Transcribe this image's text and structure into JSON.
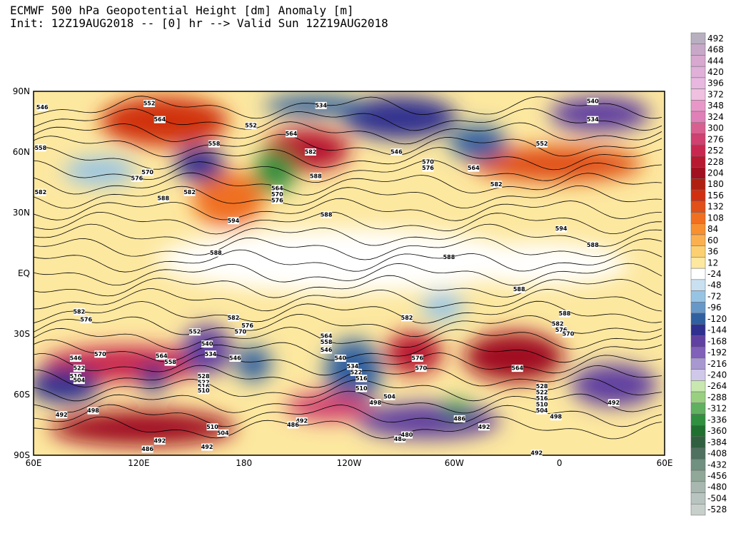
{
  "header": {
    "title": "ECMWF 500 hPa Geopotential Height [dm] Anomaly [m]",
    "subtitle": "Init: 12Z19AUG2018 -- [0] hr --> Valid Sun 12Z19AUG2018"
  },
  "map": {
    "lon_labels": [
      "60E",
      "120E",
      "180",
      "120W",
      "60W",
      "0",
      "60E"
    ],
    "lat_labels": [
      "90N",
      "60N",
      "30N",
      "EQ",
      "30S",
      "60S",
      "90S"
    ],
    "contour_labels": [
      {
        "text": "552",
        "lon": 126,
        "lat": 84
      },
      {
        "text": "546",
        "lon": 65,
        "lat": 82
      },
      {
        "text": "564",
        "lon": 132,
        "lat": 76
      },
      {
        "text": "558",
        "lon": 64,
        "lat": 62
      },
      {
        "text": "552",
        "lon": -176,
        "lat": 73
      },
      {
        "text": "558",
        "lon": 163,
        "lat": 64
      },
      {
        "text": "564",
        "lon": -153,
        "lat": 69
      },
      {
        "text": "570",
        "lon": 125,
        "lat": 50
      },
      {
        "text": "576",
        "lon": 119,
        "lat": 47
      },
      {
        "text": "582",
        "lon": 149,
        "lat": 40
      },
      {
        "text": "588",
        "lon": 134,
        "lat": 37
      },
      {
        "text": "582",
        "lon": 64,
        "lat": 40
      },
      {
        "text": "594",
        "lon": 174,
        "lat": 26
      },
      {
        "text": "588",
        "lon": 164,
        "lat": 10
      },
      {
        "text": "588",
        "lon": -133,
        "lat": 29
      },
      {
        "text": "588",
        "lon": -139,
        "lat": 48
      },
      {
        "text": "564",
        "lon": -161,
        "lat": 42
      },
      {
        "text": "570",
        "lon": -161,
        "lat": 39
      },
      {
        "text": "576",
        "lon": -161,
        "lat": 36
      },
      {
        "text": "582",
        "lon": -142,
        "lat": 60
      },
      {
        "text": "534",
        "lon": -136,
        "lat": 83
      },
      {
        "text": "540",
        "lon": 19,
        "lat": 85
      },
      {
        "text": "534",
        "lon": 19,
        "lat": 76
      },
      {
        "text": "552",
        "lon": -10,
        "lat": 64
      },
      {
        "text": "564",
        "lon": -49,
        "lat": 52
      },
      {
        "text": "582",
        "lon": -36,
        "lat": 44
      },
      {
        "text": "594",
        "lon": 1,
        "lat": 22
      },
      {
        "text": "588",
        "lon": 19,
        "lat": 14
      },
      {
        "text": "588",
        "lon": -23,
        "lat": -8
      },
      {
        "text": "588",
        "lon": -63,
        "lat": 8
      },
      {
        "text": "546",
        "lon": -93,
        "lat": 60
      },
      {
        "text": "570",
        "lon": -75,
        "lat": 55
      },
      {
        "text": "576",
        "lon": -75,
        "lat": 52
      },
      {
        "text": "582",
        "lon": 86,
        "lat": -19
      },
      {
        "text": "576",
        "lon": 90,
        "lat": -23
      },
      {
        "text": "582",
        "lon": 174,
        "lat": -22
      },
      {
        "text": "576",
        "lon": -178,
        "lat": -26
      },
      {
        "text": "570",
        "lon": 178,
        "lat": -29
      },
      {
        "text": "582",
        "lon": -87,
        "lat": -22
      },
      {
        "text": "588",
        "lon": 3,
        "lat": -20
      },
      {
        "text": "582",
        "lon": -1,
        "lat": -25
      },
      {
        "text": "576",
        "lon": 1,
        "lat": -28
      },
      {
        "text": "570",
        "lon": 5,
        "lat": -30
      },
      {
        "text": "570",
        "lon": 98,
        "lat": -40
      },
      {
        "text": "564",
        "lon": 133,
        "lat": -41
      },
      {
        "text": "558",
        "lon": 138,
        "lat": -44
      },
      {
        "text": "552",
        "lon": 152,
        "lat": -29
      },
      {
        "text": "540",
        "lon": 159,
        "lat": -35
      },
      {
        "text": "534",
        "lon": 161,
        "lat": -40
      },
      {
        "text": "546",
        "lon": 175,
        "lat": -42
      },
      {
        "text": "546",
        "lon": 84,
        "lat": -42
      },
      {
        "text": "522",
        "lon": 86,
        "lat": -47
      },
      {
        "text": "510",
        "lon": 84,
        "lat": -51
      },
      {
        "text": "504",
        "lon": 86,
        "lat": -53
      },
      {
        "text": "528",
        "lon": 157,
        "lat": -51
      },
      {
        "text": "522",
        "lon": 157,
        "lat": -54
      },
      {
        "text": "516",
        "lon": 157,
        "lat": -56
      },
      {
        "text": "510",
        "lon": 157,
        "lat": -58
      },
      {
        "text": "564",
        "lon": -133,
        "lat": -31
      },
      {
        "text": "558",
        "lon": -133,
        "lat": -34
      },
      {
        "text": "546",
        "lon": -133,
        "lat": -38
      },
      {
        "text": "540",
        "lon": -125,
        "lat": -42
      },
      {
        "text": "534",
        "lon": -118,
        "lat": -46
      },
      {
        "text": "522",
        "lon": -116,
        "lat": -49
      },
      {
        "text": "516",
        "lon": -113,
        "lat": -52
      },
      {
        "text": "510",
        "lon": -113,
        "lat": -57
      },
      {
        "text": "504",
        "lon": -97,
        "lat": -61
      },
      {
        "text": "498",
        "lon": -105,
        "lat": -64
      },
      {
        "text": "576",
        "lon": -81,
        "lat": -42
      },
      {
        "text": "570",
        "lon": -79,
        "lat": -47
      },
      {
        "text": "564",
        "lon": -24,
        "lat": -47
      },
      {
        "text": "498",
        "lon": 94,
        "lat": -68
      },
      {
        "text": "492",
        "lon": 76,
        "lat": -70
      },
      {
        "text": "510",
        "lon": 162,
        "lat": -76
      },
      {
        "text": "504",
        "lon": 168,
        "lat": -79
      },
      {
        "text": "492",
        "lon": 159,
        "lat": -86
      },
      {
        "text": "492",
        "lon": 132,
        "lat": -83
      },
      {
        "text": "486",
        "lon": 125,
        "lat": -87
      },
      {
        "text": "492",
        "lon": -147,
        "lat": -73
      },
      {
        "text": "486",
        "lon": -152,
        "lat": -75
      },
      {
        "text": "486",
        "lon": -91,
        "lat": -82
      },
      {
        "text": "480",
        "lon": -87,
        "lat": -80
      },
      {
        "text": "486",
        "lon": -57,
        "lat": -72
      },
      {
        "text": "492",
        "lon": -43,
        "lat": -76
      },
      {
        "text": "492",
        "lon": -13,
        "lat": -89
      },
      {
        "text": "492",
        "lon": 31,
        "lat": -64
      },
      {
        "text": "498",
        "lon": -2,
        "lat": -71
      },
      {
        "text": "528",
        "lon": -10,
        "lat": -56
      },
      {
        "text": "522",
        "lon": -10,
        "lat": -59
      },
      {
        "text": "516",
        "lon": -10,
        "lat": -62
      },
      {
        "text": "510",
        "lon": -10,
        "lat": -65
      },
      {
        "text": "504",
        "lon": -10,
        "lat": -68
      }
    ]
  },
  "colorbar": {
    "levels": [
      492,
      468,
      444,
      420,
      396,
      372,
      348,
      324,
      300,
      276,
      252,
      228,
      204,
      180,
      156,
      132,
      108,
      84,
      60,
      36,
      12,
      -24,
      -48,
      -72,
      -96,
      -120,
      -144,
      -168,
      -192,
      -216,
      -240,
      -264,
      -288,
      -312,
      -336,
      -360,
      -384,
      -408,
      -432,
      -456,
      -480,
      -504,
      -528
    ],
    "colors": [
      "#b8b0c0",
      "#c8a8c8",
      "#d8a8d0",
      "#e0b0d8",
      "#e8b8e0",
      "#f0c0e0",
      "#e898c8",
      "#e080b8",
      "#d86090",
      "#d04070",
      "#c82850",
      "#b81830",
      "#a01020",
      "#b02010",
      "#d03010",
      "#e05018",
      "#f07020",
      "#f89030",
      "#fbb050",
      "#fcd070",
      "#fde8a0",
      "#ffffff",
      "#c8e0f0",
      "#98c4e4",
      "#6898c8",
      "#3060a0",
      "#303090",
      "#6040a0",
      "#8060b8",
      "#a898d0",
      "#d0c8e8",
      "#c8e8b0",
      "#98d080",
      "#60b060",
      "#309040",
      "#207030",
      "#306040",
      "#507060",
      "#709080",
      "#90a898",
      "#a8b8b0",
      "#b8c4c0",
      "#c8d0cc"
    ]
  }
}
